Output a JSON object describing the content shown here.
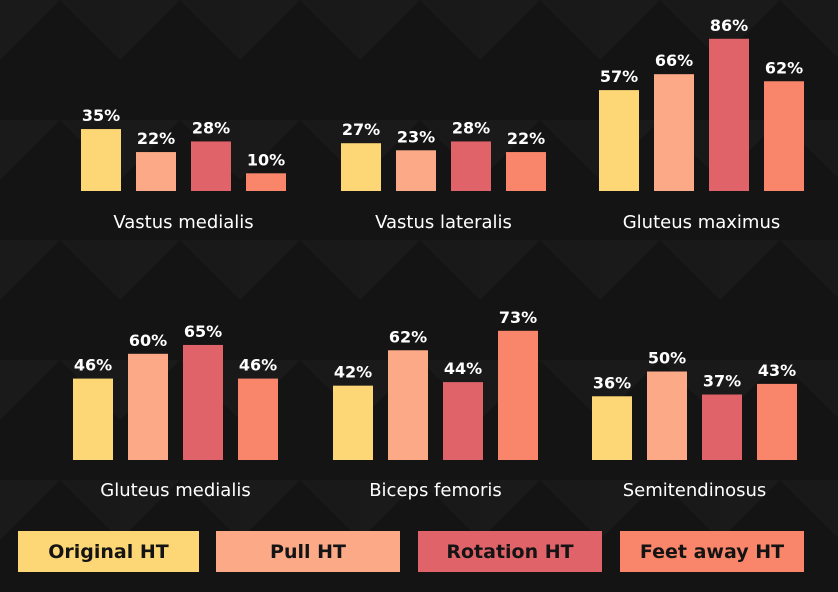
{
  "chart_data": {
    "type": "bar",
    "series_names": [
      "Original HT",
      "Pull HT",
      "Rotation HT",
      "Feet away HT"
    ],
    "colors": [
      "#FDD776",
      "#FBA987",
      "#E0636A",
      "#F9866A"
    ],
    "value_suffix": "%",
    "ylim": [
      0,
      100
    ],
    "panels": [
      {
        "title": "Vastus medialis",
        "values": [
          35,
          22,
          28,
          10
        ]
      },
      {
        "title": "Vastus lateralis",
        "values": [
          27,
          23,
          28,
          22
        ]
      },
      {
        "title": "Gluteus maximus",
        "values": [
          57,
          66,
          86,
          62
        ]
      },
      {
        "title": "Gluteus medialis",
        "values": [
          46,
          60,
          65,
          46
        ]
      },
      {
        "title": "Biceps femoris",
        "values": [
          42,
          62,
          44,
          73
        ]
      },
      {
        "title": "Semitendinosus",
        "values": [
          36,
          50,
          37,
          43
        ]
      }
    ]
  },
  "legend": {
    "items": [
      {
        "label": "Original HT",
        "color": "#FDD776"
      },
      {
        "label": "Pull HT",
        "color": "#FBA987"
      },
      {
        "label": "Rotation HT",
        "color": "#E0636A"
      },
      {
        "label": "Feet away HT",
        "color": "#F9866A"
      }
    ]
  }
}
